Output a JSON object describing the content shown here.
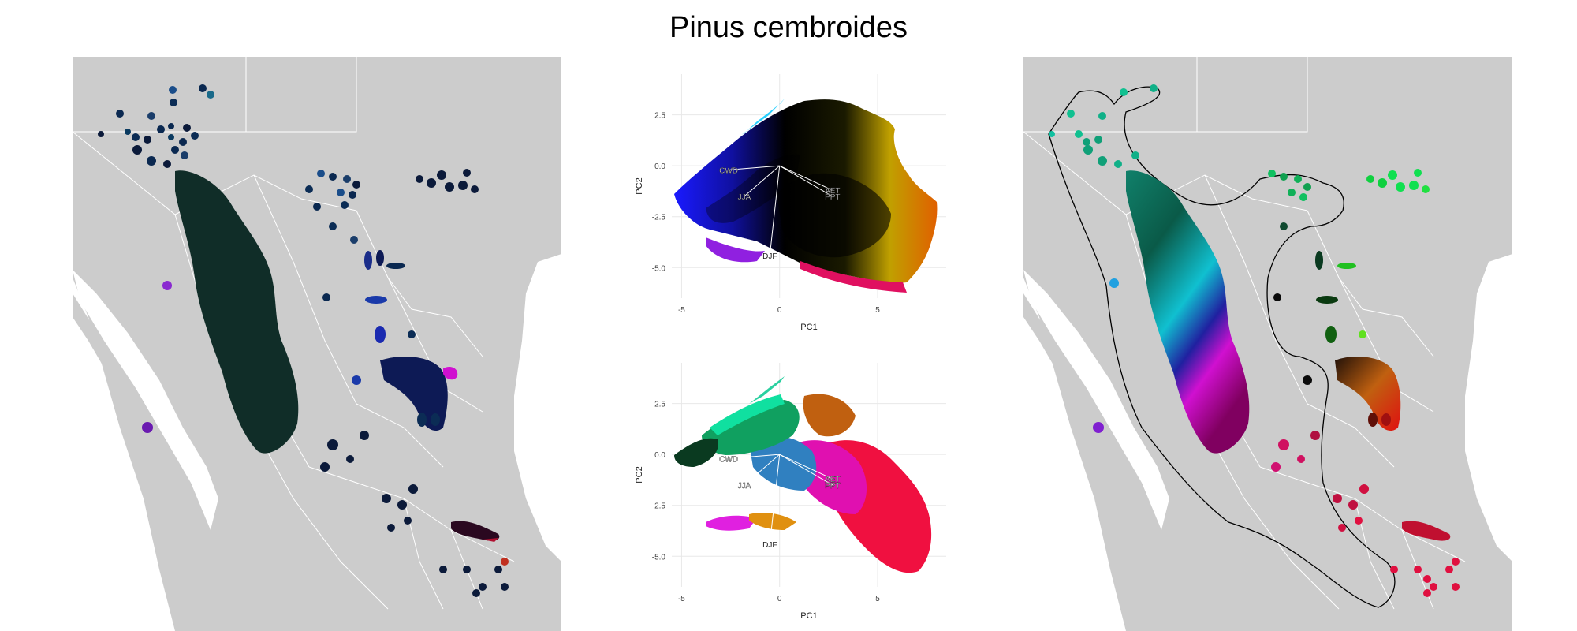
{
  "title": "Pinus cembroides",
  "colors": {
    "land": "#cccccc",
    "border": "#ffffff",
    "hull": "#000000",
    "panel_bg": "#ffffff",
    "grid": "#e8e8e8"
  },
  "chart_data": [
    {
      "type": "map",
      "panel": "left",
      "description_of_encoding": "RGB color of PCA position per occurrence"
    },
    {
      "type": "scatter",
      "panel": "top-center",
      "xlabel": "PC1",
      "ylabel": "PC2",
      "xlim": [
        -5.5,
        8.5
      ],
      "ylim": [
        -6.5,
        4.5
      ],
      "xticks": [
        -5,
        0,
        5
      ],
      "xtick_labels": [
        "-5",
        "0",
        "5"
      ],
      "yticks": [
        2.5,
        0.0,
        -2.5,
        -5.0
      ],
      "ytick_labels": [
        "2.5",
        "0.0",
        "-2.5",
        "-5.0"
      ],
      "grid": true,
      "loadings": [
        {
          "name": "CWD",
          "x": -2.6,
          "y": -0.2
        },
        {
          "name": "JJA",
          "x": -1.8,
          "y": -1.5
        },
        {
          "name": "AET",
          "x": 2.7,
          "y": -1.2
        },
        {
          "name": "PPT",
          "x": 2.7,
          "y": -1.5
        },
        {
          "name": "DJF",
          "x": -0.5,
          "y": -4.4
        }
      ]
    },
    {
      "type": "scatter",
      "panel": "bottom-center",
      "xlabel": "PC1",
      "ylabel": "PC2",
      "xlim": [
        -5.5,
        8.5
      ],
      "ylim": [
        -6.5,
        4.5
      ],
      "xticks": [
        -5,
        0,
        5
      ],
      "xtick_labels": [
        "-5",
        "0",
        "5"
      ],
      "yticks": [
        2.5,
        0.0,
        -2.5,
        -5.0
      ],
      "ytick_labels": [
        "2.5",
        "0.0",
        "-2.5",
        "-5.0"
      ],
      "grid": true,
      "loadings": [
        {
          "name": "CWD",
          "x": -2.6,
          "y": -0.2
        },
        {
          "name": "JJA",
          "x": -1.8,
          "y": -1.5
        },
        {
          "name": "AET",
          "x": 2.7,
          "y": -1.2
        },
        {
          "name": "PPT",
          "x": 2.7,
          "y": -1.5
        },
        {
          "name": "DJF",
          "x": -0.5,
          "y": -4.4
        }
      ]
    },
    {
      "type": "map",
      "panel": "right",
      "description_of_encoding": "hull color gradient with alpha hull outline"
    }
  ]
}
